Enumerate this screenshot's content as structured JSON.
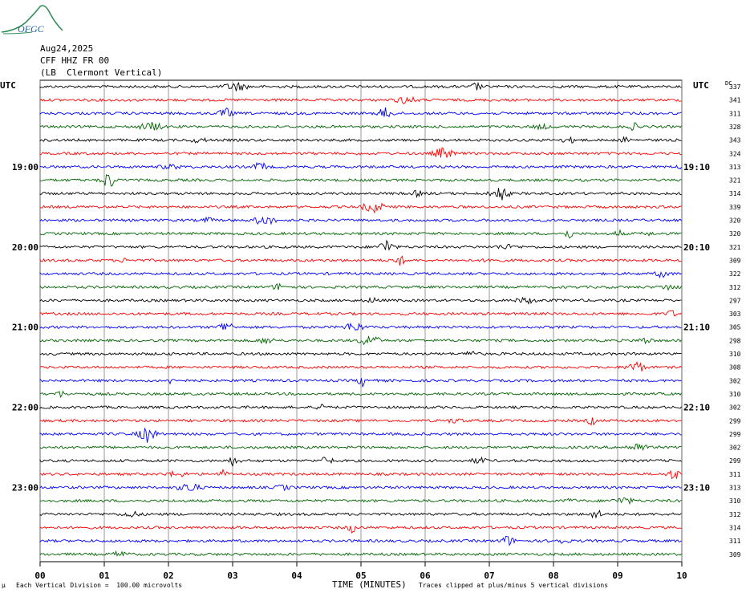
{
  "logo": {
    "text": "OFGC"
  },
  "header": {
    "date": "Aug24,2025",
    "station": "CFF HHZ FR 00",
    "location": "(LB  Clermont Vertical)"
  },
  "axes": {
    "left_label": "UTC",
    "right_label": "UTC",
    "dc_label": "DC"
  },
  "footer": {
    "scale": "Each Vertical Division =  100.00 microvolts",
    "xlabel": "TIME (MINUTES)",
    "clip_note": "Traces clipped at plus/minus 5 vertical divisions",
    "corner_mark": "μ"
  },
  "colors": {
    "cycle": [
      "#000000",
      "#ff0000",
      "#0000ff",
      "#006400"
    ],
    "grid": "#808080"
  },
  "chart_data": {
    "type": "line",
    "title": "Aug24,2025 CFF HHZ FR 00 (LB  Clermont Vertical)",
    "xlabel": "TIME (MINUTES)",
    "xlim": [
      0,
      10
    ],
    "x_ticks": [
      "00",
      "01",
      "02",
      "03",
      "04",
      "05",
      "06",
      "07",
      "08",
      "09",
      "10"
    ],
    "left_time_labels": [
      {
        "row": 6,
        "label": "19:00"
      },
      {
        "row": 12,
        "label": "20:00"
      },
      {
        "row": 18,
        "label": "21:00"
      },
      {
        "row": 24,
        "label": "22:00"
      },
      {
        "row": 30,
        "label": "23:00"
      }
    ],
    "right_time_labels": [
      {
        "row": 6,
        "label": "19:10"
      },
      {
        "row": 12,
        "label": "20:10"
      },
      {
        "row": 18,
        "label": "21:10"
      },
      {
        "row": 24,
        "label": "22:10"
      },
      {
        "row": 30,
        "label": "23:10"
      }
    ],
    "dc_offsets": [
      "337",
      "341",
      "311",
      "328",
      "343",
      "324",
      "313",
      "321",
      "314",
      "339",
      "320",
      "320",
      "321",
      "309",
      "322",
      "312",
      "297",
      "303",
      "305",
      "298",
      "310",
      "308",
      "302",
      "310",
      "302",
      "299",
      "299",
      "302",
      "299",
      "311",
      "313",
      "310",
      "312",
      "314",
      "311",
      "309"
    ],
    "trace_rows": 36,
    "grid": true
  }
}
